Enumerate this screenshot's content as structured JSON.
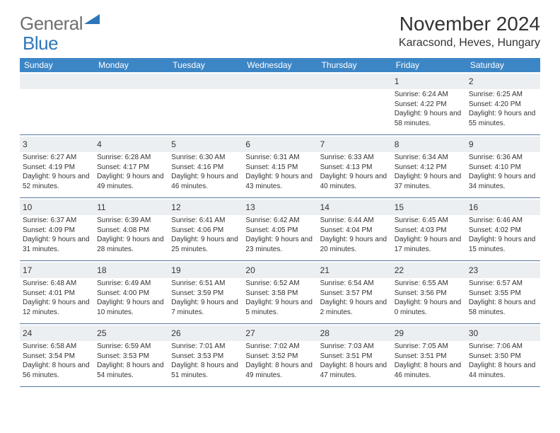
{
  "logo": {
    "gray": "General",
    "blue": "Blue"
  },
  "title": "November 2024",
  "location": "Karacsond, Heves, Hungary",
  "header_bg": "#3d86c6",
  "daynum_bg": "#eceff2",
  "border_color": "#5a7aa0",
  "day_names": [
    "Sunday",
    "Monday",
    "Tuesday",
    "Wednesday",
    "Thursday",
    "Friday",
    "Saturday"
  ],
  "weeks": [
    [
      {
        "n": "",
        "sunrise": "",
        "sunset": "",
        "daylight": ""
      },
      {
        "n": "",
        "sunrise": "",
        "sunset": "",
        "daylight": ""
      },
      {
        "n": "",
        "sunrise": "",
        "sunset": "",
        "daylight": ""
      },
      {
        "n": "",
        "sunrise": "",
        "sunset": "",
        "daylight": ""
      },
      {
        "n": "",
        "sunrise": "",
        "sunset": "",
        "daylight": ""
      },
      {
        "n": "1",
        "sunrise": "Sunrise: 6:24 AM",
        "sunset": "Sunset: 4:22 PM",
        "daylight": "Daylight: 9 hours and 58 minutes."
      },
      {
        "n": "2",
        "sunrise": "Sunrise: 6:25 AM",
        "sunset": "Sunset: 4:20 PM",
        "daylight": "Daylight: 9 hours and 55 minutes."
      }
    ],
    [
      {
        "n": "3",
        "sunrise": "Sunrise: 6:27 AM",
        "sunset": "Sunset: 4:19 PM",
        "daylight": "Daylight: 9 hours and 52 minutes."
      },
      {
        "n": "4",
        "sunrise": "Sunrise: 6:28 AM",
        "sunset": "Sunset: 4:17 PM",
        "daylight": "Daylight: 9 hours and 49 minutes."
      },
      {
        "n": "5",
        "sunrise": "Sunrise: 6:30 AM",
        "sunset": "Sunset: 4:16 PM",
        "daylight": "Daylight: 9 hours and 46 minutes."
      },
      {
        "n": "6",
        "sunrise": "Sunrise: 6:31 AM",
        "sunset": "Sunset: 4:15 PM",
        "daylight": "Daylight: 9 hours and 43 minutes."
      },
      {
        "n": "7",
        "sunrise": "Sunrise: 6:33 AM",
        "sunset": "Sunset: 4:13 PM",
        "daylight": "Daylight: 9 hours and 40 minutes."
      },
      {
        "n": "8",
        "sunrise": "Sunrise: 6:34 AM",
        "sunset": "Sunset: 4:12 PM",
        "daylight": "Daylight: 9 hours and 37 minutes."
      },
      {
        "n": "9",
        "sunrise": "Sunrise: 6:36 AM",
        "sunset": "Sunset: 4:10 PM",
        "daylight": "Daylight: 9 hours and 34 minutes."
      }
    ],
    [
      {
        "n": "10",
        "sunrise": "Sunrise: 6:37 AM",
        "sunset": "Sunset: 4:09 PM",
        "daylight": "Daylight: 9 hours and 31 minutes."
      },
      {
        "n": "11",
        "sunrise": "Sunrise: 6:39 AM",
        "sunset": "Sunset: 4:08 PM",
        "daylight": "Daylight: 9 hours and 28 minutes."
      },
      {
        "n": "12",
        "sunrise": "Sunrise: 6:41 AM",
        "sunset": "Sunset: 4:06 PM",
        "daylight": "Daylight: 9 hours and 25 minutes."
      },
      {
        "n": "13",
        "sunrise": "Sunrise: 6:42 AM",
        "sunset": "Sunset: 4:05 PM",
        "daylight": "Daylight: 9 hours and 23 minutes."
      },
      {
        "n": "14",
        "sunrise": "Sunrise: 6:44 AM",
        "sunset": "Sunset: 4:04 PM",
        "daylight": "Daylight: 9 hours and 20 minutes."
      },
      {
        "n": "15",
        "sunrise": "Sunrise: 6:45 AM",
        "sunset": "Sunset: 4:03 PM",
        "daylight": "Daylight: 9 hours and 17 minutes."
      },
      {
        "n": "16",
        "sunrise": "Sunrise: 6:46 AM",
        "sunset": "Sunset: 4:02 PM",
        "daylight": "Daylight: 9 hours and 15 minutes."
      }
    ],
    [
      {
        "n": "17",
        "sunrise": "Sunrise: 6:48 AM",
        "sunset": "Sunset: 4:01 PM",
        "daylight": "Daylight: 9 hours and 12 minutes."
      },
      {
        "n": "18",
        "sunrise": "Sunrise: 6:49 AM",
        "sunset": "Sunset: 4:00 PM",
        "daylight": "Daylight: 9 hours and 10 minutes."
      },
      {
        "n": "19",
        "sunrise": "Sunrise: 6:51 AM",
        "sunset": "Sunset: 3:59 PM",
        "daylight": "Daylight: 9 hours and 7 minutes."
      },
      {
        "n": "20",
        "sunrise": "Sunrise: 6:52 AM",
        "sunset": "Sunset: 3:58 PM",
        "daylight": "Daylight: 9 hours and 5 minutes."
      },
      {
        "n": "21",
        "sunrise": "Sunrise: 6:54 AM",
        "sunset": "Sunset: 3:57 PM",
        "daylight": "Daylight: 9 hours and 2 minutes."
      },
      {
        "n": "22",
        "sunrise": "Sunrise: 6:55 AM",
        "sunset": "Sunset: 3:56 PM",
        "daylight": "Daylight: 9 hours and 0 minutes."
      },
      {
        "n": "23",
        "sunrise": "Sunrise: 6:57 AM",
        "sunset": "Sunset: 3:55 PM",
        "daylight": "Daylight: 8 hours and 58 minutes."
      }
    ],
    [
      {
        "n": "24",
        "sunrise": "Sunrise: 6:58 AM",
        "sunset": "Sunset: 3:54 PM",
        "daylight": "Daylight: 8 hours and 56 minutes."
      },
      {
        "n": "25",
        "sunrise": "Sunrise: 6:59 AM",
        "sunset": "Sunset: 3:53 PM",
        "daylight": "Daylight: 8 hours and 54 minutes."
      },
      {
        "n": "26",
        "sunrise": "Sunrise: 7:01 AM",
        "sunset": "Sunset: 3:53 PM",
        "daylight": "Daylight: 8 hours and 51 minutes."
      },
      {
        "n": "27",
        "sunrise": "Sunrise: 7:02 AM",
        "sunset": "Sunset: 3:52 PM",
        "daylight": "Daylight: 8 hours and 49 minutes."
      },
      {
        "n": "28",
        "sunrise": "Sunrise: 7:03 AM",
        "sunset": "Sunset: 3:51 PM",
        "daylight": "Daylight: 8 hours and 47 minutes."
      },
      {
        "n": "29",
        "sunrise": "Sunrise: 7:05 AM",
        "sunset": "Sunset: 3:51 PM",
        "daylight": "Daylight: 8 hours and 46 minutes."
      },
      {
        "n": "30",
        "sunrise": "Sunrise: 7:06 AM",
        "sunset": "Sunset: 3:50 PM",
        "daylight": "Daylight: 8 hours and 44 minutes."
      }
    ]
  ]
}
